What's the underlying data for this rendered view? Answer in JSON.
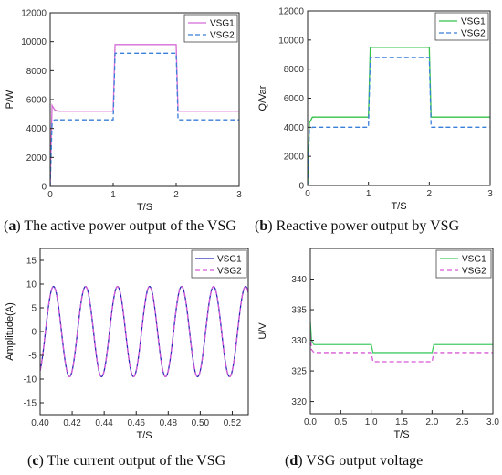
{
  "chart_data": [
    {
      "id": "a",
      "type": "line",
      "caption_letter": "a",
      "caption_text": " The active power output of the VSG",
      "xlabel": "T/S",
      "ylabel": "P/W",
      "xlim": [
        0,
        3
      ],
      "ylim": [
        0,
        12000
      ],
      "xticks": [
        0,
        1,
        2,
        3
      ],
      "yticks": [
        0,
        2000,
        4000,
        6000,
        8000,
        10000,
        12000
      ],
      "legend_position": "top-right",
      "series": [
        {
          "name": "VSG1",
          "color": "#d66bd6",
          "dash": "solid",
          "x": [
            0,
            0.03,
            0.07,
            0.12,
            0.99,
            1.0,
            1.03,
            1.99,
            2.0,
            2.03,
            3.0
          ],
          "y": [
            0,
            5600,
            5300,
            5200,
            5200,
            5200,
            9800,
            9800,
            9800,
            5200,
            5200
          ]
        },
        {
          "name": "VSG2",
          "color": "#3a7fd8",
          "dash": "dashed",
          "x": [
            0,
            0.03,
            0.07,
            0.12,
            0.99,
            1.0,
            1.03,
            1.99,
            2.0,
            2.03,
            3.0
          ],
          "y": [
            0,
            4400,
            4600,
            4600,
            4600,
            4600,
            9200,
            9200,
            9200,
            4600,
            4600
          ]
        }
      ]
    },
    {
      "id": "b",
      "type": "line",
      "caption_letter": "b",
      "caption_text": " Reactive power output by VSG",
      "xlabel": "T/S",
      "ylabel": "Q/Var",
      "xlim": [
        0,
        3
      ],
      "ylim": [
        0,
        12000
      ],
      "xticks": [
        0,
        1,
        2,
        3
      ],
      "yticks": [
        0,
        2000,
        4000,
        6000,
        8000,
        10000,
        12000
      ],
      "legend_position": "top-right",
      "series": [
        {
          "name": "VSG1",
          "color": "#33c24a",
          "dash": "solid",
          "x": [
            0,
            0.03,
            0.08,
            0.99,
            1.0,
            1.03,
            1.99,
            2.0,
            2.03,
            3.0
          ],
          "y": [
            0,
            4300,
            4700,
            4700,
            4700,
            9500,
            9500,
            9500,
            4700,
            4700
          ]
        },
        {
          "name": "VSG2",
          "color": "#3a7fd8",
          "dash": "dashed",
          "x": [
            0,
            0.03,
            0.08,
            0.99,
            1.0,
            1.03,
            1.99,
            2.0,
            2.03,
            3.0
          ],
          "y": [
            0,
            3800,
            4000,
            4000,
            4000,
            8800,
            8800,
            8800,
            4000,
            4000
          ]
        }
      ]
    },
    {
      "id": "c",
      "type": "line",
      "caption_letter": "c",
      "caption_text": " The current output of the VSG",
      "xlabel": "T/S",
      "ylabel": "Amplitude(A)",
      "xlim": [
        0.4,
        0.53
      ],
      "ylim": [
        -17.5,
        17.5
      ],
      "xticks": [
        0.4,
        0.42,
        0.44,
        0.46,
        0.48,
        0.5,
        0.52
      ],
      "xtick_labels": [
        "0.40",
        "0.42",
        "0.44",
        "0.46",
        "0.48",
        "0.50",
        "0.52"
      ],
      "yticks": [
        -15,
        -10,
        -5,
        0,
        5,
        10,
        15
      ],
      "legend_position": "top-right",
      "waveform": {
        "amplitude": 9.5,
        "frequency_hz": 50,
        "phase_deg": -60
      },
      "series": [
        {
          "name": "VSG1",
          "color": "#2a2ab8",
          "dash": "solid"
        },
        {
          "name": "VSG2",
          "color": "#d65ad6",
          "dash": "dashed"
        }
      ]
    },
    {
      "id": "d",
      "type": "line",
      "caption_letter": "d",
      "caption_text": " VSG output voltage",
      "xlabel": "T/S",
      "ylabel": "U/V",
      "xlim": [
        0,
        3
      ],
      "ylim": [
        318,
        345
      ],
      "xticks": [
        0,
        0.5,
        1.0,
        1.5,
        2.0,
        2.5,
        3.0
      ],
      "xtick_labels": [
        "0.0",
        "0.5",
        "1.0",
        "1.5",
        "2.0",
        "2.5",
        "3.0"
      ],
      "yticks": [
        320,
        325,
        330,
        335,
        340
      ],
      "legend_position": "top-right",
      "series": [
        {
          "name": "VSG1",
          "color": "#44cc66",
          "dash": "solid",
          "x": [
            0,
            0.02,
            0.06,
            0.99,
            1.0,
            1.03,
            1.99,
            2.0,
            2.03,
            3.0
          ],
          "y": [
            333,
            330,
            329.3,
            329.3,
            329.3,
            328,
            328,
            328,
            329.3,
            329.3
          ]
        },
        {
          "name": "VSG2",
          "color": "#d65ad6",
          "dash": "dashed",
          "x": [
            0,
            0.02,
            0.06,
            0.99,
            1.0,
            1.03,
            1.99,
            2.0,
            2.03,
            3.0
          ],
          "y": [
            331,
            328.5,
            328,
            328,
            328,
            326.5,
            326.5,
            326.5,
            328,
            328
          ]
        }
      ]
    }
  ]
}
